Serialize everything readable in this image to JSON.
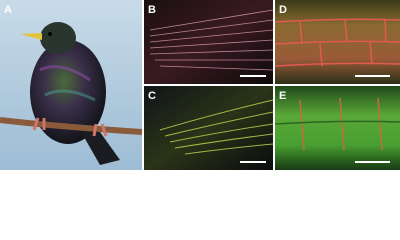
{
  "panels": [
    {
      "label": "A"
    },
    {
      "label": "B"
    },
    {
      "label": "C"
    },
    {
      "label": "D"
    },
    {
      "label": "E"
    }
  ]
}
